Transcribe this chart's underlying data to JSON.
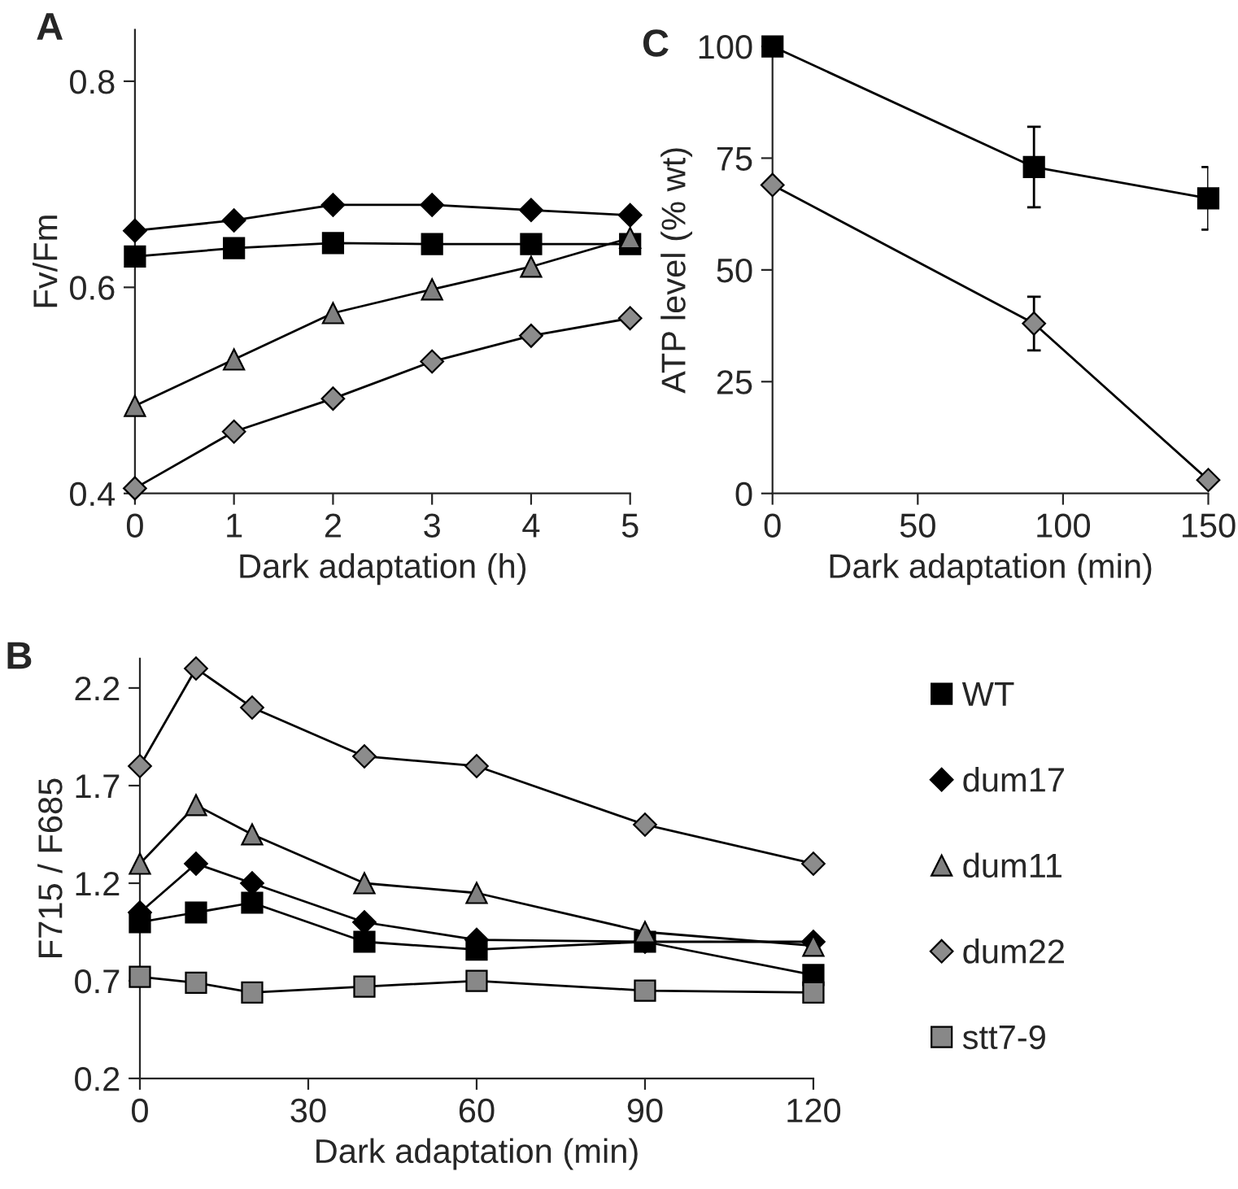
{
  "chart_data": [
    {
      "type": "line",
      "title": "A",
      "xlabel": "Dark adaptation (h)",
      "ylabel": "Fv/Fm",
      "x": [
        0,
        1,
        2,
        3,
        4,
        5
      ],
      "xlim": [
        0,
        5
      ],
      "xticks": [
        0,
        1,
        2,
        3,
        4,
        5
      ],
      "ylim": [
        0.4,
        0.85
      ],
      "yticks": [
        0.4,
        0.6,
        0.8
      ],
      "grid": false,
      "legend": false,
      "series": [
        {
          "color": "#000000",
          "marker": "square",
          "values": [
            0.63,
            0.638,
            0.643,
            0.642,
            0.642,
            0.642
          ]
        },
        {
          "color": "#000000",
          "marker": "diamond",
          "values": [
            0.655,
            0.665,
            0.68,
            0.68,
            0.675,
            0.67
          ]
        },
        {
          "color": "#808080",
          "marker": "triangle",
          "values": [
            0.485,
            0.53,
            0.575,
            0.598,
            0.62,
            0.648
          ]
        },
        {
          "color": "#8c8c8c",
          "marker": "diamond",
          "values": [
            0.405,
            0.46,
            0.492,
            0.528,
            0.553,
            0.57
          ]
        }
      ]
    },
    {
      "type": "line",
      "title": "B",
      "xlabel": "Dark adaptation (min)",
      "ylabel": "F715 / F685",
      "x": [
        0,
        10,
        20,
        40,
        60,
        90,
        120
      ],
      "xlim": [
        0,
        120
      ],
      "xticks": [
        0,
        30,
        60,
        90,
        120
      ],
      "ylim": [
        0.2,
        2.35
      ],
      "yticks": [
        0.2,
        0.7,
        1.2,
        1.7,
        2.2
      ],
      "grid": false,
      "legend": "right",
      "series": [
        {
          "name": "WT",
          "color": "#000000",
          "marker": "square",
          "values": [
            1.0,
            1.05,
            1.1,
            0.9,
            0.86,
            0.9,
            0.73
          ]
        },
        {
          "name": "dum17",
          "color": "#000000",
          "marker": "diamond",
          "values": [
            1.05,
            1.3,
            1.2,
            1.0,
            0.91,
            0.9,
            0.9
          ]
        },
        {
          "name": "dum11",
          "color": "#808080",
          "marker": "triangle",
          "values": [
            1.3,
            1.6,
            1.45,
            1.2,
            1.15,
            0.95,
            0.88
          ]
        },
        {
          "name": "dum22",
          "color": "#8c8c8c",
          "marker": "diamond",
          "values": [
            1.8,
            2.3,
            2.1,
            1.85,
            1.8,
            1.5,
            1.3
          ]
        },
        {
          "name": "stt7-9",
          "color": "#888888",
          "marker": "square",
          "values": [
            0.72,
            0.69,
            0.64,
            0.67,
            0.7,
            0.65,
            0.64
          ]
        }
      ]
    },
    {
      "type": "line",
      "title": "C",
      "xlabel": "Dark adaptation (min)",
      "ylabel": "ATP level (% wt)",
      "x": [
        0,
        90,
        150
      ],
      "xlim": [
        0,
        150
      ],
      "xticks": [
        0,
        50,
        100,
        150
      ],
      "ylim": [
        0,
        100
      ],
      "yticks": [
        0,
        25,
        50,
        75,
        100
      ],
      "grid": false,
      "legend": false,
      "series": [
        {
          "color": "#000000",
          "marker": "square",
          "values": [
            100,
            73,
            66
          ],
          "errors": [
            null,
            9,
            7
          ]
        },
        {
          "color": "#8c8c8c",
          "marker": "diamond",
          "values": [
            69,
            38,
            3
          ],
          "errors": [
            null,
            6,
            null
          ]
        }
      ]
    }
  ]
}
